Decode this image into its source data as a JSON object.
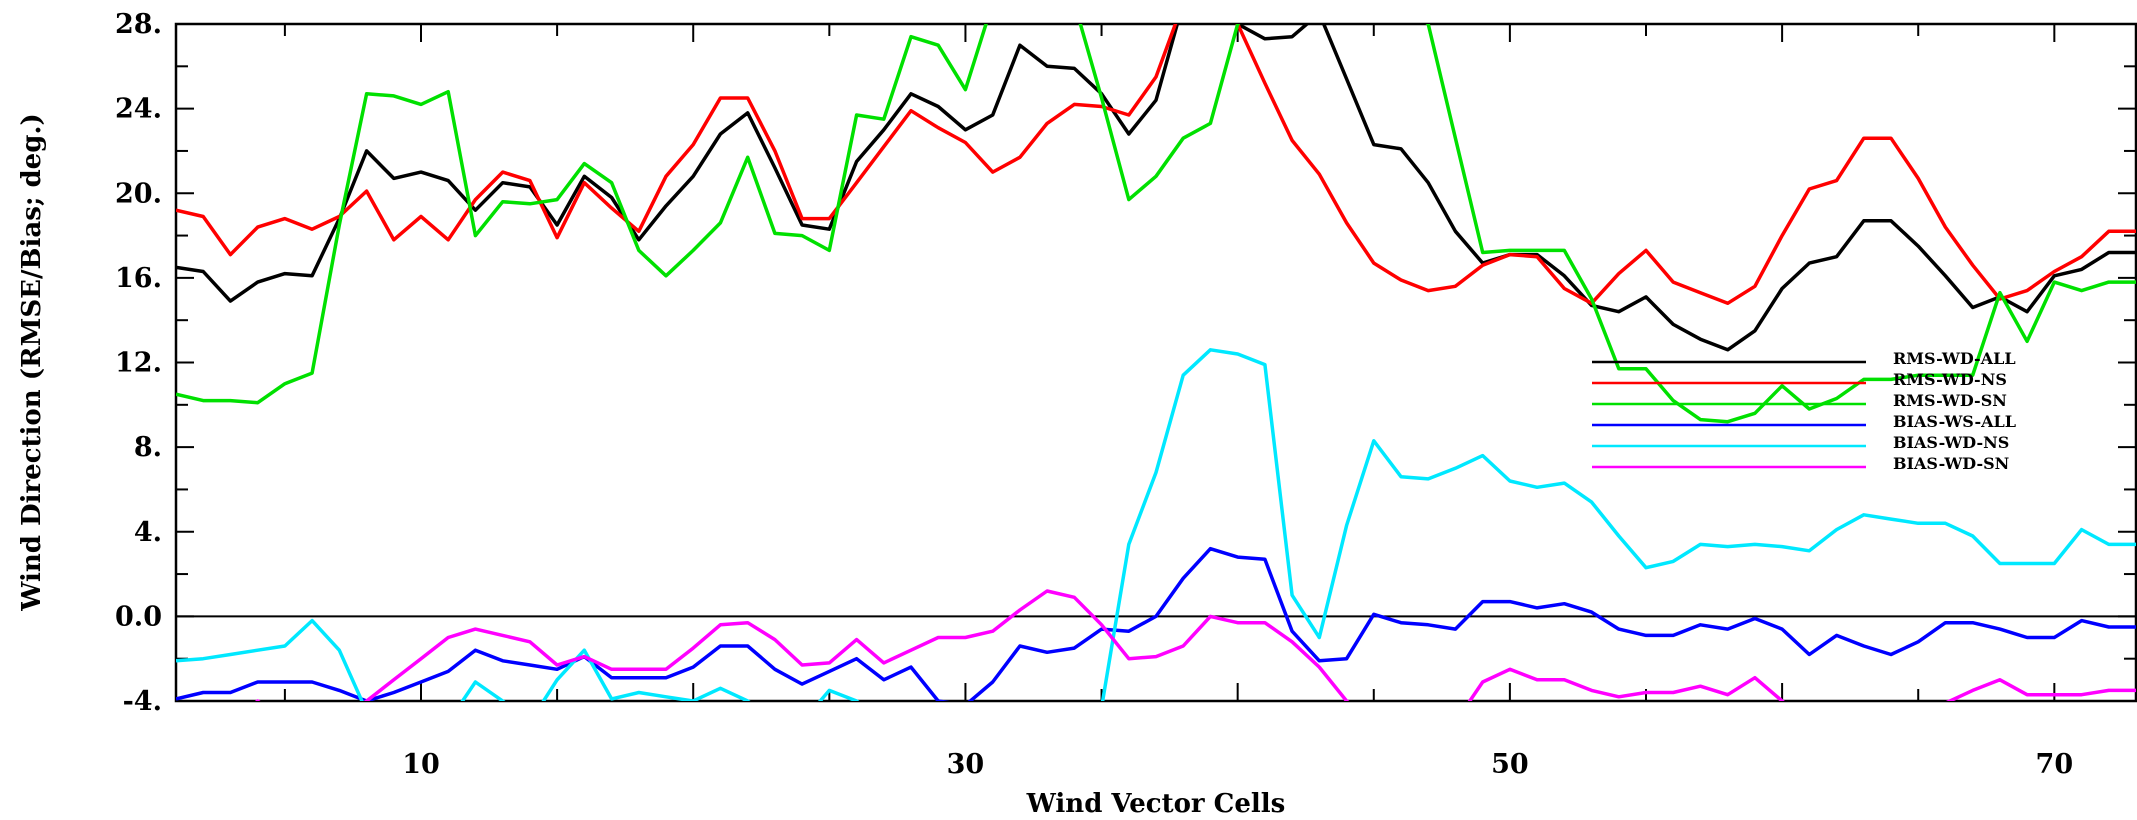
{
  "chart_data": {
    "type": "line",
    "title": "",
    "xlabel": "Wind Vector Cells",
    "ylabel": "Wind Direction (RMSE/Bias; deg.)",
    "xlim": [
      1,
      73
    ],
    "ylim": [
      -4,
      28
    ],
    "x_ticks": [
      10,
      30,
      50,
      70
    ],
    "y_ticks": [
      28,
      24,
      20,
      16,
      12,
      8,
      4,
      0,
      -4
    ],
    "y_tick_labels": [
      "28.",
      "24.",
      "20.",
      "16.",
      "12.",
      "8.",
      "4.",
      "0.0",
      "-4."
    ],
    "grid": false,
    "zero_line": 0,
    "legend_position": "right",
    "series": [
      {
        "name": "RMS-WD-ALL",
        "color": "#000000",
        "x": [
          1,
          2,
          3,
          4,
          5,
          6,
          7,
          8,
          9,
          10,
          11,
          12,
          13,
          14,
          15,
          16,
          17,
          18,
          19,
          20,
          21,
          22,
          23,
          24,
          25,
          26,
          27,
          28,
          29,
          30,
          31,
          32,
          33,
          34,
          35,
          36,
          37,
          38,
          39,
          40,
          41,
          42,
          43,
          44,
          45,
          46,
          47,
          48,
          49,
          50,
          51,
          52,
          53,
          54,
          55,
          56,
          57,
          58,
          59,
          60,
          61,
          62,
          63,
          64,
          65,
          66,
          67,
          68,
          69,
          70,
          71,
          72,
          73
        ],
        "y": [
          16.5,
          16.3,
          14.9,
          15.8,
          16.2,
          16.1,
          18.8,
          22,
          20.7,
          21.0,
          20.6,
          19.2,
          20.5,
          20.3,
          18.5,
          20.8,
          19.8,
          17.8,
          19.4,
          20.8,
          22.8,
          23.8,
          21.2,
          18.5,
          18.3,
          21.5,
          23.0,
          24.7,
          24.1,
          23.0,
          23.7,
          27.0,
          26.0,
          25.9,
          24.7,
          22.8,
          24.4,
          29,
          29,
          28,
          27.3,
          27.4,
          28.5,
          25.4,
          22.3,
          22.1,
          20.5,
          18.2,
          16.7,
          17.1,
          17.1,
          16.1,
          14.7,
          14.4,
          15.1,
          13.8,
          13.1,
          12.6,
          13.5,
          15.5,
          16.7,
          17.0,
          18.7,
          18.7,
          17.5,
          16.1,
          14.6,
          15.1,
          14.4,
          16.1,
          16.4,
          17.2,
          17.2
        ]
      },
      {
        "name": "RMS-WD-NS",
        "color": "#ff0000",
        "x": [
          1,
          2,
          3,
          4,
          5,
          6,
          7,
          8,
          9,
          10,
          11,
          12,
          13,
          14,
          15,
          16,
          17,
          18,
          19,
          20,
          21,
          22,
          23,
          24,
          25,
          26,
          27,
          28,
          29,
          30,
          31,
          32,
          33,
          34,
          35,
          36,
          37,
          38,
          39,
          40,
          41,
          42,
          43,
          44,
          45,
          46,
          47,
          48,
          49,
          50,
          51,
          52,
          53,
          54,
          55,
          56,
          57,
          58,
          59,
          60,
          61,
          62,
          63,
          64,
          65,
          66,
          67,
          68,
          69,
          70,
          71,
          72,
          73
        ],
        "y": [
          19.2,
          18.9,
          17.1,
          18.4,
          18.8,
          18.3,
          18.9,
          20.1,
          17.8,
          18.9,
          17.8,
          19.7,
          21.0,
          20.6,
          17.9,
          20.5,
          19.3,
          18.2,
          20.8,
          22.3,
          24.5,
          24.5,
          22.0,
          18.8,
          18.8,
          20.5,
          22.2,
          23.9,
          23.1,
          22.4,
          21.0,
          21.7,
          23.3,
          24.2,
          24.1,
          23.7,
          25.5,
          29,
          29,
          28,
          25.2,
          22.5,
          20.9,
          18.6,
          16.7,
          15.9,
          15.4,
          15.6,
          16.6,
          17.1,
          17.0,
          15.5,
          14.8,
          16.2,
          17.3,
          15.8,
          15.3,
          14.8,
          15.6,
          18.0,
          20.2,
          20.6,
          22.6,
          22.6,
          20.7,
          18.4,
          16.6,
          15.0,
          15.4,
          16.3,
          17.0,
          18.2,
          18.2
        ]
      },
      {
        "name": "RMS-WD-SN",
        "color": "#00e000",
        "x": [
          1,
          2,
          3,
          4,
          5,
          6,
          7,
          8,
          9,
          10,
          11,
          12,
          13,
          14,
          15,
          16,
          17,
          18,
          19,
          20,
          21,
          22,
          23,
          24,
          25,
          26,
          27,
          28,
          29,
          30,
          31,
          32,
          33,
          34,
          35,
          36,
          37,
          38,
          39,
          40,
          41,
          42,
          43,
          44,
          45,
          46,
          47,
          48,
          49,
          50,
          51,
          52,
          53,
          54,
          55,
          56,
          57,
          58,
          59,
          60,
          61,
          62,
          63,
          64,
          65,
          66,
          67,
          68,
          69,
          70,
          71,
          72,
          73
        ],
        "y": [
          10.5,
          10.2,
          10.2,
          10.1,
          11.0,
          11.5,
          18.5,
          24.7,
          24.6,
          24.2,
          24.8,
          18.0,
          19.6,
          19.5,
          19.7,
          21.4,
          20.5,
          17.3,
          16.1,
          17.3,
          18.6,
          21.7,
          18.1,
          18.0,
          17.3,
          23.7,
          23.5,
          27.4,
          27.0,
          24.9,
          29,
          29,
          29,
          29,
          24.5,
          19.7,
          20.8,
          22.6,
          23.3,
          28,
          29,
          29,
          29,
          29,
          29,
          29,
          28,
          22.6,
          17.2,
          17.3,
          17.3,
          17.3,
          15.0,
          11.7,
          11.7,
          10.2,
          9.3,
          9.2,
          9.6,
          10.9,
          9.8,
          10.3,
          11.2,
          11.2,
          11.4,
          11.4,
          11.4,
          15.3,
          13.0,
          15.8,
          15.4,
          15.8,
          15.8
        ]
      },
      {
        "name": "BIAS-WS-ALL",
        "color": "#0000ff",
        "x": [
          1,
          2,
          3,
          4,
          5,
          6,
          7,
          8,
          9,
          10,
          11,
          12,
          13,
          14,
          15,
          16,
          17,
          18,
          19,
          20,
          21,
          22,
          23,
          24,
          25,
          26,
          27,
          28,
          29,
          30,
          31,
          32,
          33,
          34,
          35,
          36,
          37,
          38,
          39,
          40,
          41,
          42,
          43,
          44,
          45,
          46,
          47,
          48,
          49,
          50,
          51,
          52,
          53,
          54,
          55,
          56,
          57,
          58,
          59,
          60,
          61,
          62,
          63,
          64,
          65,
          66,
          67,
          68,
          69,
          70,
          71,
          72,
          73
        ],
        "y": [
          -3.9,
          -3.6,
          -3.6,
          -3.1,
          -3.1,
          -3.1,
          -3.5,
          -4.0,
          -3.6,
          -3.1,
          -2.6,
          -1.6,
          -2.1,
          -2.3,
          -2.5,
          -1.9,
          -2.9,
          -2.9,
          -2.9,
          -2.4,
          -1.4,
          -1.4,
          -2.5,
          -3.2,
          -2.6,
          -2.0,
          -3.0,
          -2.4,
          -4.0,
          -4.2,
          -3.1,
          -1.4,
          -1.7,
          -1.5,
          -0.6,
          -0.7,
          0.0,
          1.8,
          3.2,
          2.8,
          2.7,
          -0.7,
          -2.1,
          -2.0,
          0.1,
          -0.3,
          -0.4,
          -0.6,
          0.7,
          0.7,
          0.4,
          0.6,
          0.2,
          -0.6,
          -0.9,
          -0.9,
          -0.4,
          -0.6,
          -0.1,
          -0.6,
          -1.8,
          -0.9,
          -1.4,
          -1.8,
          -1.2,
          -0.3,
          -0.3,
          -0.6,
          -1.0,
          -1.0,
          -0.2,
          -0.5,
          -0.5
        ]
      },
      {
        "name": "BIAS-WD-NS",
        "color": "#00e8ff",
        "x": [
          1,
          2,
          3,
          4,
          5,
          6,
          7,
          8,
          9,
          10,
          11,
          12,
          13,
          14,
          15,
          16,
          17,
          18,
          19,
          20,
          21,
          22,
          23,
          24,
          25,
          26,
          27,
          28,
          29,
          30,
          31,
          32,
          33,
          34,
          35,
          36,
          37,
          38,
          39,
          40,
          41,
          42,
          43,
          44,
          45,
          46,
          47,
          48,
          49,
          50,
          51,
          52,
          53,
          54,
          55,
          56,
          57,
          58,
          59,
          60,
          61,
          62,
          63,
          64,
          65,
          66,
          67,
          68,
          69,
          70,
          71,
          72,
          73
        ],
        "y": [
          -2.1,
          -2.0,
          -1.8,
          -1.6,
          -1.4,
          -0.2,
          -1.6,
          -4.5,
          -5,
          -5,
          -5,
          -3.1,
          -4.0,
          -5,
          -3.0,
          -1.6,
          -3.9,
          -3.6,
          -3.8,
          -4.0,
          -3.4,
          -4.0,
          -5,
          -5,
          -3.5,
          -4.0,
          -5,
          -5,
          -5,
          -5,
          -5,
          -5,
          -5,
          -5,
          -4.3,
          3.4,
          6.8,
          11.4,
          12.6,
          12.4,
          11.9,
          1.0,
          -1.0,
          4.3,
          8.3,
          6.6,
          6.5,
          7.0,
          7.6,
          6.4,
          6.1,
          6.3,
          5.4,
          3.8,
          2.3,
          2.6,
          3.4,
          3.3,
          3.4,
          3.3,
          3.1,
          4.1,
          4.8,
          4.6,
          4.4,
          4.4,
          3.8,
          2.5,
          2.5,
          2.5,
          4.1,
          3.4,
          3.4
        ]
      },
      {
        "name": "BIAS-WD-SN",
        "color": "#ff00ff",
        "x": [
          1,
          2,
          3,
          4,
          5,
          6,
          7,
          8,
          9,
          10,
          11,
          12,
          13,
          14,
          15,
          16,
          17,
          18,
          19,
          20,
          21,
          22,
          23,
          24,
          25,
          26,
          27,
          28,
          29,
          30,
          31,
          32,
          33,
          34,
          35,
          36,
          37,
          38,
          39,
          40,
          41,
          42,
          43,
          44,
          45,
          46,
          47,
          48,
          49,
          50,
          51,
          52,
          53,
          54,
          55,
          56,
          57,
          58,
          59,
          60,
          61,
          62,
          63,
          64,
          65,
          66,
          67,
          68,
          69,
          70,
          71,
          72,
          73
        ],
        "y": [
          -5,
          -5,
          -5,
          -4.0,
          -5,
          -5,
          -5,
          -4.0,
          -3.0,
          -2.0,
          -1.0,
          -0.6,
          -0.9,
          -1.2,
          -2.3,
          -1.9,
          -2.5,
          -2.5,
          -2.5,
          -1.5,
          -0.4,
          -0.3,
          -1.1,
          -2.3,
          -2.2,
          -1.1,
          -2.2,
          -1.6,
          -1.0,
          -1.0,
          -0.7,
          0.3,
          1.2,
          0.9,
          -0.4,
          -2.0,
          -1.9,
          -1.4,
          0.0,
          -0.3,
          -0.3,
          -1.2,
          -2.4,
          -4.0,
          -5,
          -5,
          -5,
          -5,
          -3.1,
          -2.5,
          -3.0,
          -3.0,
          -3.5,
          -3.8,
          -3.6,
          -3.6,
          -3.3,
          -3.7,
          -2.9,
          -4.0,
          -5,
          -5,
          -5,
          -5,
          -5,
          -4.1,
          -3.5,
          -3.0,
          -3.7,
          -3.7,
          -3.7,
          -3.5,
          -3.5
        ]
      }
    ]
  }
}
